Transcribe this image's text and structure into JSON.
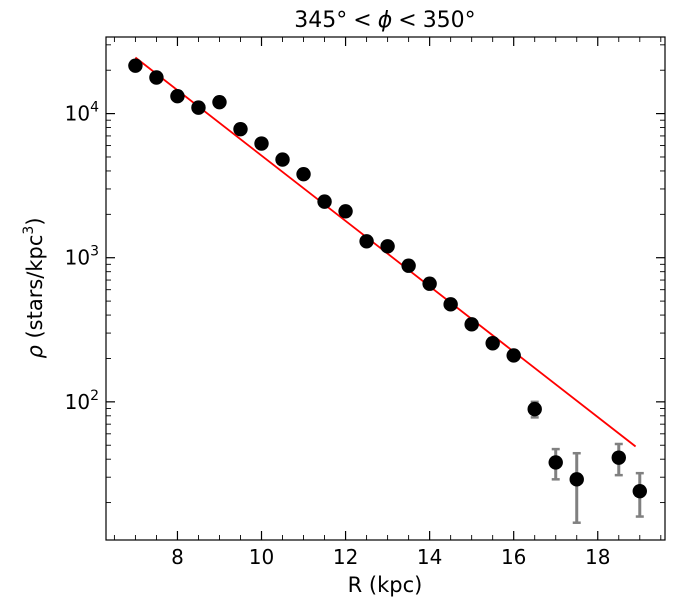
{
  "chart_data": {
    "type": "scatter",
    "title": "345° < ϕ < 350°",
    "title_parts": [
      "345°",
      "<",
      "ϕ",
      "<",
      "350°"
    ],
    "xlabel": "R (kpc)",
    "ylabel_parts": [
      "ρ",
      " (stars/kpc",
      "3",
      ")"
    ],
    "xlim": [
      6.3,
      19.6
    ],
    "ylim": [
      11,
      34000
    ],
    "yscale": "log",
    "grid": false,
    "x_ticks": [
      8,
      10,
      12,
      14,
      16,
      18
    ],
    "y_ticks": [
      {
        "value": 100,
        "base": "10",
        "exp": "2"
      },
      {
        "value": 1000,
        "base": "10",
        "exp": "3"
      },
      {
        "value": 10000,
        "base": "10",
        "exp": "4"
      }
    ],
    "series": [
      {
        "color": "#000000",
        "errcolor": "#808080",
        "points": [
          {
            "x": 7.0,
            "y": 21500
          },
          {
            "x": 7.5,
            "y": 17800
          },
          {
            "x": 8.0,
            "y": 13200
          },
          {
            "x": 8.5,
            "y": 11000
          },
          {
            "x": 9.0,
            "y": 12000
          },
          {
            "x": 9.5,
            "y": 7800
          },
          {
            "x": 10.0,
            "y": 6200
          },
          {
            "x": 10.5,
            "y": 4800
          },
          {
            "x": 11.0,
            "y": 3800
          },
          {
            "x": 11.5,
            "y": 2450
          },
          {
            "x": 12.0,
            "y": 2100
          },
          {
            "x": 12.5,
            "y": 1300
          },
          {
            "x": 13.0,
            "y": 1200
          },
          {
            "x": 13.5,
            "y": 880
          },
          {
            "x": 14.0,
            "y": 660
          },
          {
            "x": 14.5,
            "y": 475
          },
          {
            "x": 15.0,
            "y": 345
          },
          {
            "x": 15.5,
            "y": 255
          },
          {
            "x": 16.0,
            "y": 210
          },
          {
            "x": 16.5,
            "y": 89,
            "err_lo": 78,
            "err_hi": 100
          },
          {
            "x": 17.0,
            "y": 38,
            "err_lo": 29,
            "err_hi": 47
          },
          {
            "x": 17.5,
            "y": 29,
            "err_lo": 14.5,
            "err_hi": 44
          },
          {
            "x": 18.5,
            "y": 41,
            "err_lo": 31,
            "err_hi": 51
          },
          {
            "x": 19.0,
            "y": 24,
            "err_lo": 16,
            "err_hi": 32
          }
        ]
      }
    ],
    "fit_line": {
      "color": "#ff0000",
      "x": [
        7.0,
        18.9
      ],
      "y": [
        24500,
        49
      ]
    }
  }
}
